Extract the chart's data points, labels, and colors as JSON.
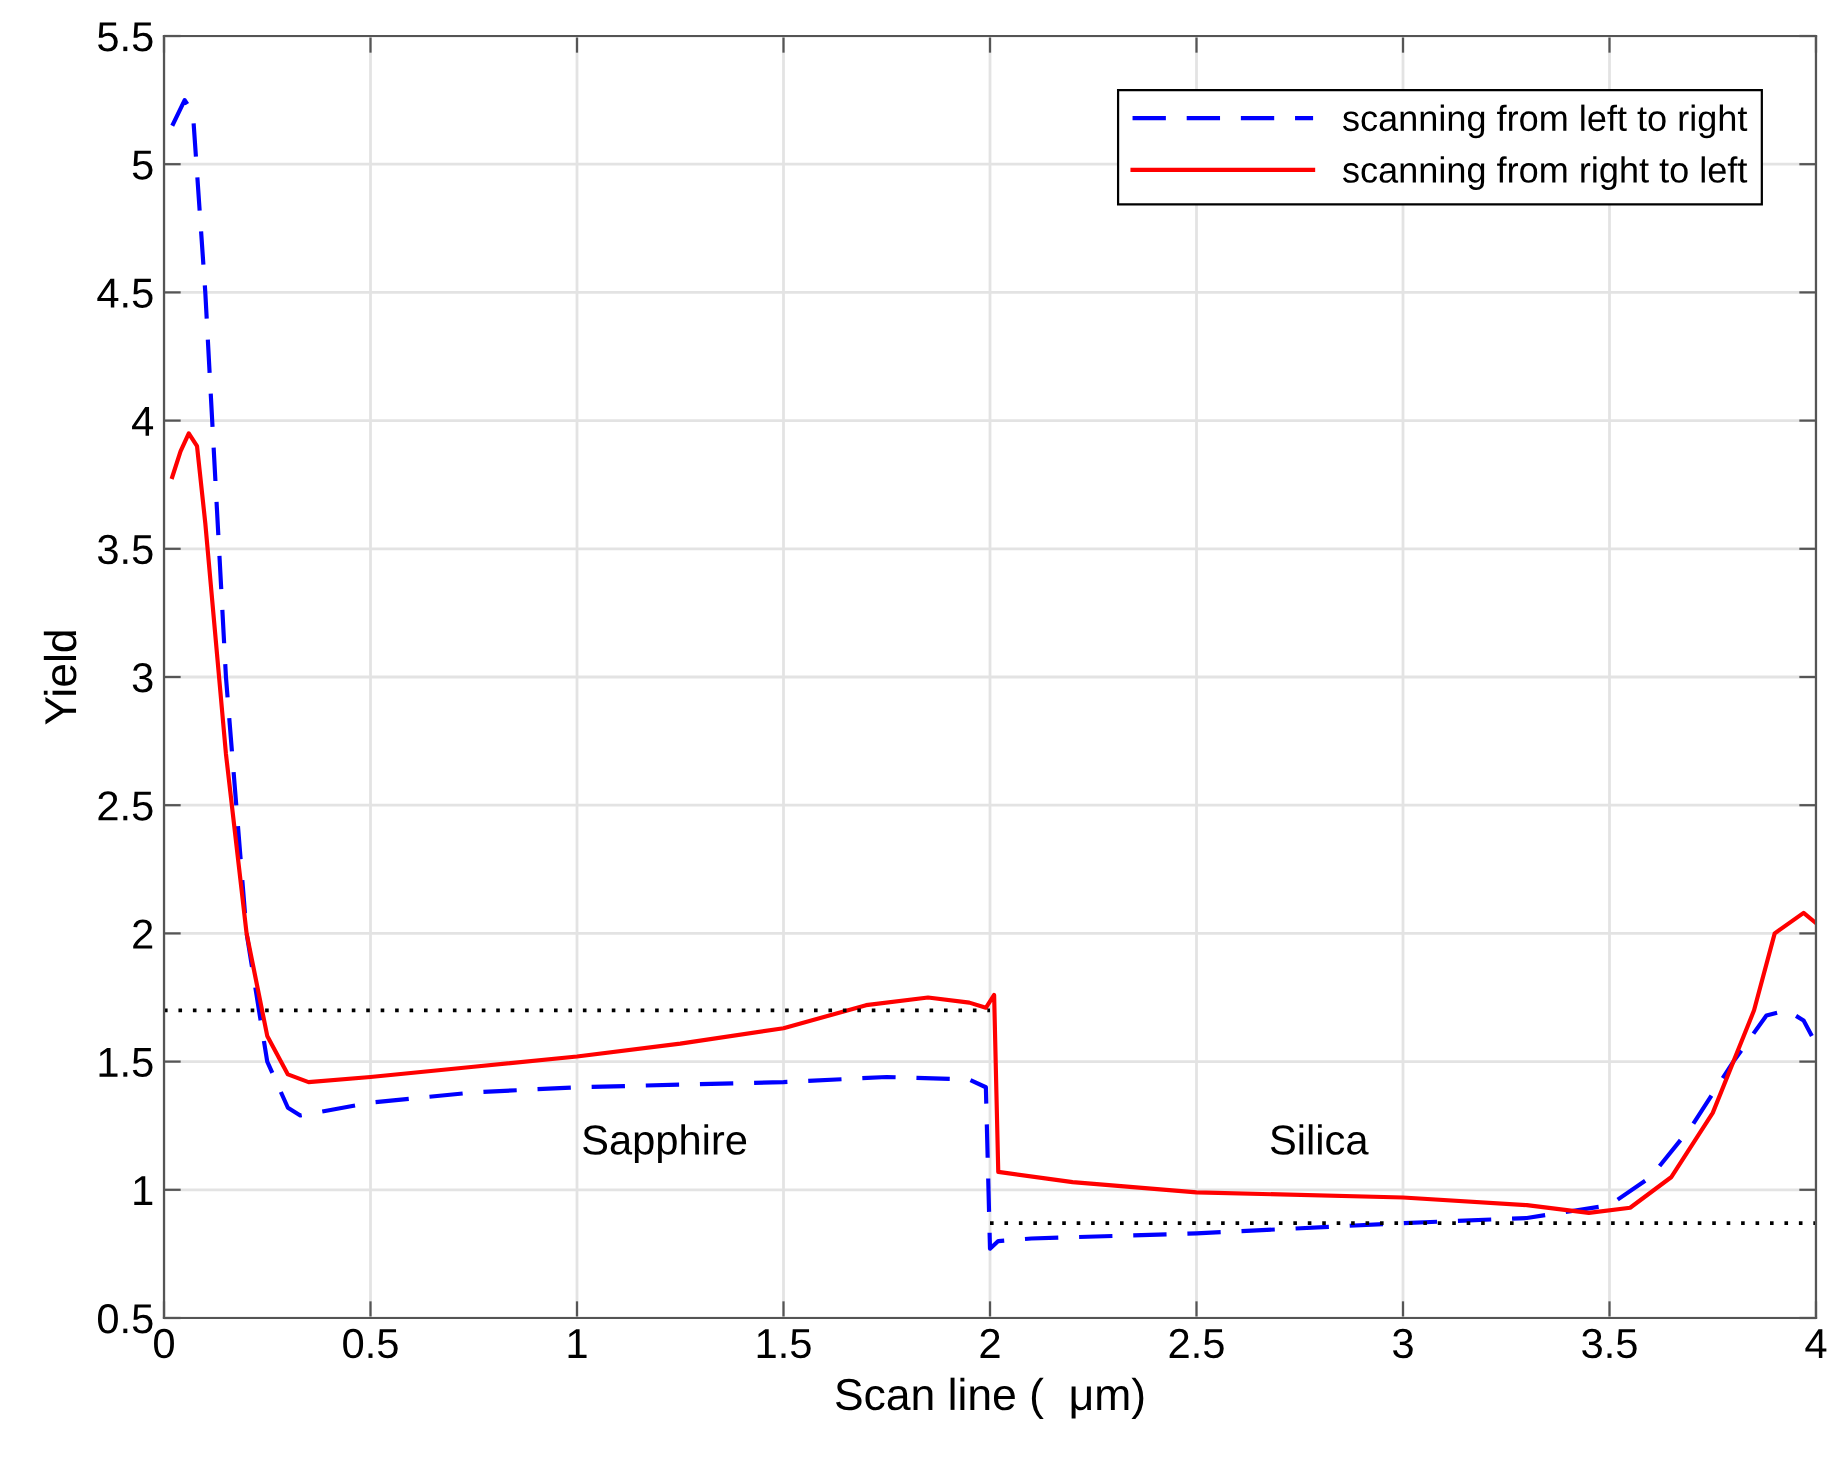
{
  "chart_data": {
    "type": "line",
    "xlabel": "Scan line (  μm)",
    "ylabel": "Yield",
    "xlim": [
      0,
      4
    ],
    "ylim": [
      0.5,
      5.5
    ],
    "xticks": [
      0,
      0.5,
      1,
      1.5,
      2,
      2.5,
      3,
      3.5,
      4
    ],
    "yticks": [
      0.5,
      1,
      1.5,
      2,
      2.5,
      3,
      3.5,
      4,
      4.5,
      5,
      5.5
    ],
    "grid": true,
    "legend": "top right",
    "series": [
      {
        "name": "scanning from left to right",
        "color": "#0000ff",
        "line_style": "dashed",
        "x": [
          0.02,
          0.05,
          0.07,
          0.1,
          0.15,
          0.2,
          0.25,
          0.3,
          0.33,
          0.4,
          0.5,
          0.75,
          1.0,
          1.25,
          1.5,
          1.75,
          1.95,
          1.99,
          2.0,
          2.02,
          2.1,
          2.5,
          3.0,
          3.3,
          3.5,
          3.6,
          3.7,
          3.8,
          3.88,
          3.93,
          3.97,
          3.99
        ],
        "values": [
          5.15,
          5.25,
          5.2,
          4.5,
          3.0,
          2.0,
          1.5,
          1.32,
          1.29,
          1.31,
          1.34,
          1.38,
          1.4,
          1.41,
          1.42,
          1.44,
          1.43,
          1.4,
          0.77,
          0.8,
          0.81,
          0.83,
          0.87,
          0.89,
          0.94,
          1.05,
          1.25,
          1.5,
          1.68,
          1.7,
          1.66,
          1.6
        ]
      },
      {
        "name": "scanning from right to left",
        "color": "#ff0000",
        "line_style": "solid",
        "x": [
          0.02,
          0.04,
          0.06,
          0.08,
          0.1,
          0.15,
          0.2,
          0.25,
          0.3,
          0.35,
          0.5,
          0.75,
          1.0,
          1.25,
          1.5,
          1.7,
          1.85,
          1.95,
          1.99,
          2.01,
          2.02,
          2.2,
          2.5,
          3.0,
          3.3,
          3.45,
          3.55,
          3.65,
          3.75,
          3.85,
          3.9,
          3.97,
          4.0
        ],
        "values": [
          3.78,
          3.88,
          3.95,
          3.9,
          3.6,
          2.7,
          2.0,
          1.6,
          1.45,
          1.42,
          1.44,
          1.48,
          1.52,
          1.57,
          1.63,
          1.72,
          1.75,
          1.73,
          1.71,
          1.76,
          1.07,
          1.03,
          0.99,
          0.97,
          0.94,
          0.91,
          0.93,
          1.05,
          1.3,
          1.7,
          2.0,
          2.08,
          2.04
        ]
      },
      {
        "color": "#000000",
        "line_style": "dotted",
        "x": [
          0,
          2
        ],
        "values": [
          1.7,
          1.7
        ]
      },
      {
        "color": "#000000",
        "line_style": "dotted",
        "x": [
          2,
          4
        ],
        "values": [
          0.87,
          0.87
        ]
      }
    ],
    "annotations": [
      "Sapphire",
      "Silica"
    ]
  }
}
